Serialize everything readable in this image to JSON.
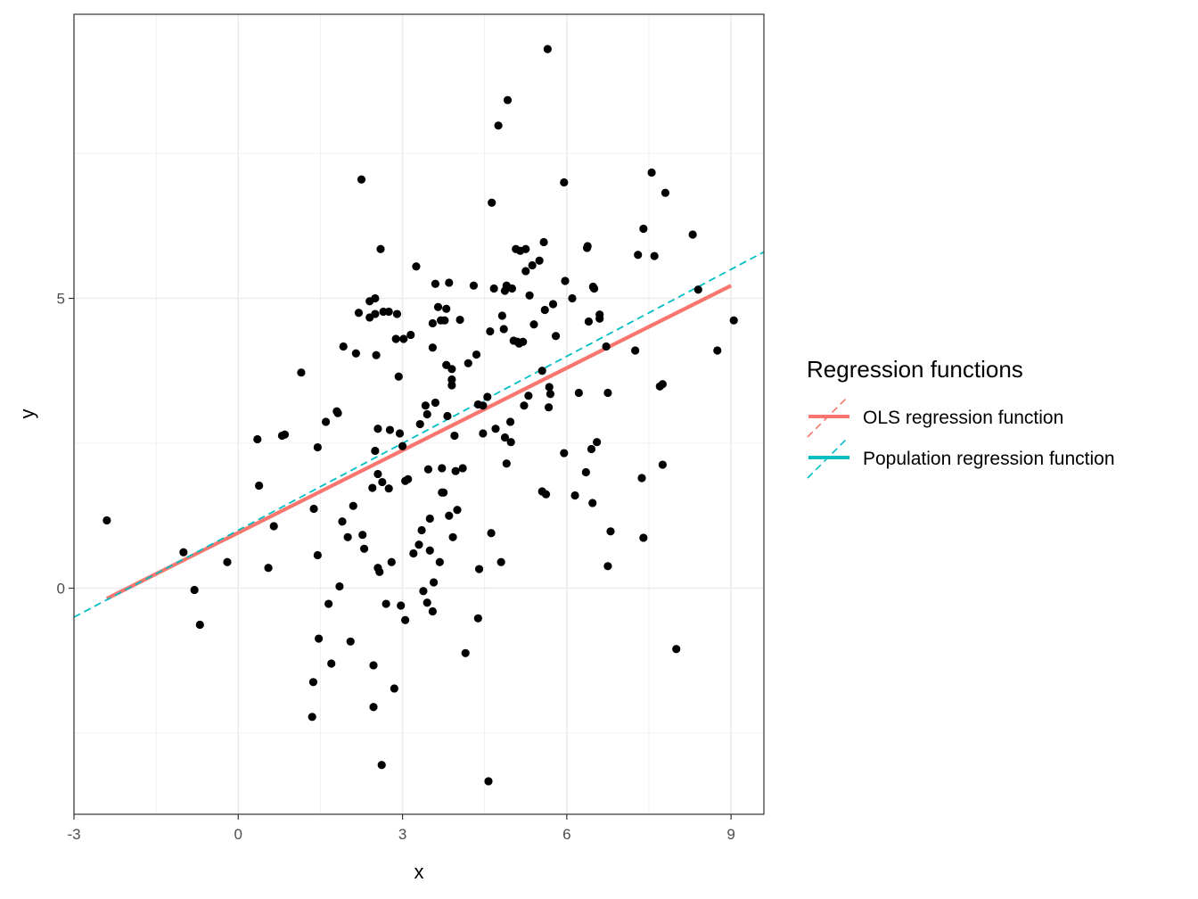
{
  "chart_data": {
    "type": "scatter",
    "xlabel": "x",
    "ylabel": "y",
    "xlim": [
      -3,
      9.6
    ],
    "ylim": [
      -3.9,
      9.9
    ],
    "x_ticks": [
      -3,
      0,
      3,
      6,
      9
    ],
    "y_ticks": [
      0,
      5
    ],
    "x_tick_labels": [
      "-3",
      "0",
      "3",
      "6",
      "9"
    ],
    "y_tick_labels": [
      "0",
      "5"
    ],
    "grid": true,
    "legend": {
      "title": "Regression functions",
      "position": "right",
      "entries": [
        "OLS regression function",
        "Population regression function"
      ]
    },
    "colors": {
      "points": "#000000",
      "ols": "#F8766D",
      "population": "#00BFC4",
      "grid": "#ebebeb",
      "border": "#333333"
    },
    "lines": [
      {
        "name": "OLS regression function",
        "style": "solid",
        "x": [
          -2.4,
          9.0
        ],
        "y": [
          -0.18,
          5.22
        ]
      },
      {
        "name": "Population regression function",
        "style": "dashed",
        "x": [
          -3.0,
          9.6
        ],
        "y": [
          -0.5,
          5.8
        ]
      }
    ],
    "points": [
      [
        -2.4,
        1.17
      ],
      [
        -1.0,
        0.62
      ],
      [
        -0.8,
        -0.03
      ],
      [
        -0.7,
        -0.63
      ],
      [
        -0.2,
        0.45
      ],
      [
        0.35,
        2.57
      ],
      [
        0.38,
        1.77
      ],
      [
        0.55,
        0.35
      ],
      [
        0.65,
        1.07
      ],
      [
        0.8,
        2.63
      ],
      [
        0.85,
        2.65
      ],
      [
        1.15,
        3.72
      ],
      [
        1.35,
        -2.22
      ],
      [
        1.37,
        -1.62
      ],
      [
        1.38,
        1.37
      ],
      [
        1.45,
        0.57
      ],
      [
        1.45,
        2.43
      ],
      [
        1.47,
        -0.87
      ],
      [
        1.6,
        2.87
      ],
      [
        1.65,
        -0.27
      ],
      [
        1.7,
        -1.3
      ],
      [
        1.8,
        3.05
      ],
      [
        1.82,
        3.02
      ],
      [
        1.85,
        0.03
      ],
      [
        1.9,
        1.15
      ],
      [
        1.92,
        4.17
      ],
      [
        2.0,
        0.88
      ],
      [
        2.05,
        -0.92
      ],
      [
        2.1,
        1.42
      ],
      [
        2.15,
        4.05
      ],
      [
        2.2,
        4.75
      ],
      [
        2.25,
        7.05
      ],
      [
        2.27,
        0.92
      ],
      [
        2.3,
        0.68
      ],
      [
        2.4,
        4.67
      ],
      [
        2.4,
        4.95
      ],
      [
        2.45,
        1.73
      ],
      [
        2.47,
        -1.33
      ],
      [
        2.47,
        -2.05
      ],
      [
        2.5,
        2.37
      ],
      [
        2.5,
        5.0
      ],
      [
        2.5,
        4.73
      ],
      [
        2.52,
        4.02
      ],
      [
        2.55,
        1.97
      ],
      [
        2.55,
        2.75
      ],
      [
        2.55,
        0.35
      ],
      [
        2.58,
        0.28
      ],
      [
        2.6,
        5.85
      ],
      [
        2.62,
        -3.05
      ],
      [
        2.63,
        1.83
      ],
      [
        2.65,
        4.77
      ],
      [
        2.7,
        -0.27
      ],
      [
        2.75,
        4.77
      ],
      [
        2.75,
        1.72
      ],
      [
        2.77,
        2.73
      ],
      [
        2.8,
        0.45
      ],
      [
        2.85,
        -1.73
      ],
      [
        2.88,
        4.3
      ],
      [
        2.9,
        4.73
      ],
      [
        2.93,
        3.65
      ],
      [
        2.95,
        2.67
      ],
      [
        2.97,
        -0.3
      ],
      [
        3.0,
        2.45
      ],
      [
        3.02,
        4.3
      ],
      [
        3.05,
        -0.55
      ],
      [
        3.05,
        1.85
      ],
      [
        3.1,
        1.88
      ],
      [
        3.15,
        4.37
      ],
      [
        3.2,
        0.6
      ],
      [
        3.25,
        5.55
      ],
      [
        3.3,
        0.75
      ],
      [
        3.32,
        2.83
      ],
      [
        3.35,
        1.0
      ],
      [
        3.38,
        -0.05
      ],
      [
        3.42,
        3.15
      ],
      [
        3.45,
        -0.25
      ],
      [
        3.45,
        3.0
      ],
      [
        3.47,
        2.05
      ],
      [
        3.5,
        1.2
      ],
      [
        3.5,
        0.65
      ],
      [
        3.55,
        -0.4
      ],
      [
        3.55,
        4.15
      ],
      [
        3.55,
        4.57
      ],
      [
        3.57,
        0.1
      ],
      [
        3.6,
        5.25
      ],
      [
        3.6,
        3.2
      ],
      [
        3.65,
        4.85
      ],
      [
        3.68,
        0.45
      ],
      [
        3.7,
        4.62
      ],
      [
        3.72,
        2.07
      ],
      [
        3.72,
        1.65
      ],
      [
        3.75,
        1.65
      ],
      [
        3.77,
        4.62
      ],
      [
        3.8,
        3.85
      ],
      [
        3.8,
        4.82
      ],
      [
        3.82,
        2.97
      ],
      [
        3.85,
        5.27
      ],
      [
        3.85,
        1.25
      ],
      [
        3.9,
        3.78
      ],
      [
        3.9,
        3.5
      ],
      [
        3.9,
        3.6
      ],
      [
        3.92,
        0.88
      ],
      [
        3.95,
        2.63
      ],
      [
        3.97,
        2.02
      ],
      [
        4.0,
        1.35
      ],
      [
        4.05,
        4.63
      ],
      [
        4.1,
        2.07
      ],
      [
        4.15,
        -1.12
      ],
      [
        4.2,
        3.88
      ],
      [
        4.3,
        5.22
      ],
      [
        4.35,
        4.03
      ],
      [
        4.38,
        3.17
      ],
      [
        4.38,
        -0.52
      ],
      [
        4.4,
        0.33
      ],
      [
        4.47,
        3.15
      ],
      [
        4.47,
        2.67
      ],
      [
        4.55,
        3.3
      ],
      [
        4.57,
        -3.33
      ],
      [
        4.62,
        0.95
      ],
      [
        4.6,
        4.43
      ],
      [
        4.63,
        6.65
      ],
      [
        4.67,
        5.17
      ],
      [
        4.7,
        2.75
      ],
      [
        4.75,
        7.98
      ],
      [
        4.8,
        0.45
      ],
      [
        4.82,
        4.7
      ],
      [
        4.85,
        4.47
      ],
      [
        4.87,
        5.13
      ],
      [
        4.87,
        2.6
      ],
      [
        4.9,
        5.22
      ],
      [
        4.9,
        2.15
      ],
      [
        4.92,
        8.42
      ],
      [
        4.97,
        2.87
      ],
      [
        4.98,
        2.52
      ],
      [
        5.0,
        5.17
      ],
      [
        5.03,
        4.27
      ],
      [
        5.07,
        5.85
      ],
      [
        5.1,
        4.25
      ],
      [
        5.13,
        4.22
      ],
      [
        5.15,
        5.82
      ],
      [
        5.2,
        4.25
      ],
      [
        5.22,
        3.15
      ],
      [
        5.25,
        5.85
      ],
      [
        5.25,
        5.47
      ],
      [
        5.3,
        3.32
      ],
      [
        5.32,
        5.05
      ],
      [
        5.37,
        5.57
      ],
      [
        5.4,
        4.55
      ],
      [
        5.5,
        5.65
      ],
      [
        5.55,
        3.75
      ],
      [
        5.55,
        1.67
      ],
      [
        5.58,
        5.97
      ],
      [
        5.6,
        4.8
      ],
      [
        5.62,
        1.62
      ],
      [
        5.65,
        9.3
      ],
      [
        5.67,
        3.12
      ],
      [
        5.68,
        3.47
      ],
      [
        5.7,
        3.35
      ],
      [
        5.75,
        4.9
      ],
      [
        5.8,
        4.35
      ],
      [
        5.95,
        7.0
      ],
      [
        5.95,
        2.33
      ],
      [
        5.97,
        5.3
      ],
      [
        6.1,
        5.0
      ],
      [
        6.15,
        1.6
      ],
      [
        6.22,
        3.37
      ],
      [
        6.35,
        2.0
      ],
      [
        6.37,
        5.87
      ],
      [
        6.38,
        5.9
      ],
      [
        6.4,
        4.6
      ],
      [
        6.45,
        2.4
      ],
      [
        6.47,
        1.47
      ],
      [
        6.48,
        5.2
      ],
      [
        6.5,
        5.17
      ],
      [
        6.55,
        2.52
      ],
      [
        6.6,
        4.65
      ],
      [
        6.6,
        4.72
      ],
      [
        6.72,
        4.17
      ],
      [
        6.75,
        3.37
      ],
      [
        6.75,
        0.38
      ],
      [
        6.8,
        0.98
      ],
      [
        7.25,
        4.1
      ],
      [
        7.3,
        5.75
      ],
      [
        7.37,
        1.9
      ],
      [
        7.4,
        0.87
      ],
      [
        7.4,
        6.2
      ],
      [
        7.55,
        7.17
      ],
      [
        7.6,
        5.73
      ],
      [
        7.7,
        3.48
      ],
      [
        7.75,
        3.52
      ],
      [
        7.75,
        2.13
      ],
      [
        7.8,
        6.82
      ],
      [
        8.0,
        -1.05
      ],
      [
        8.3,
        6.1
      ],
      [
        8.4,
        5.15
      ],
      [
        8.75,
        4.1
      ],
      [
        9.05,
        4.62
      ]
    ]
  }
}
